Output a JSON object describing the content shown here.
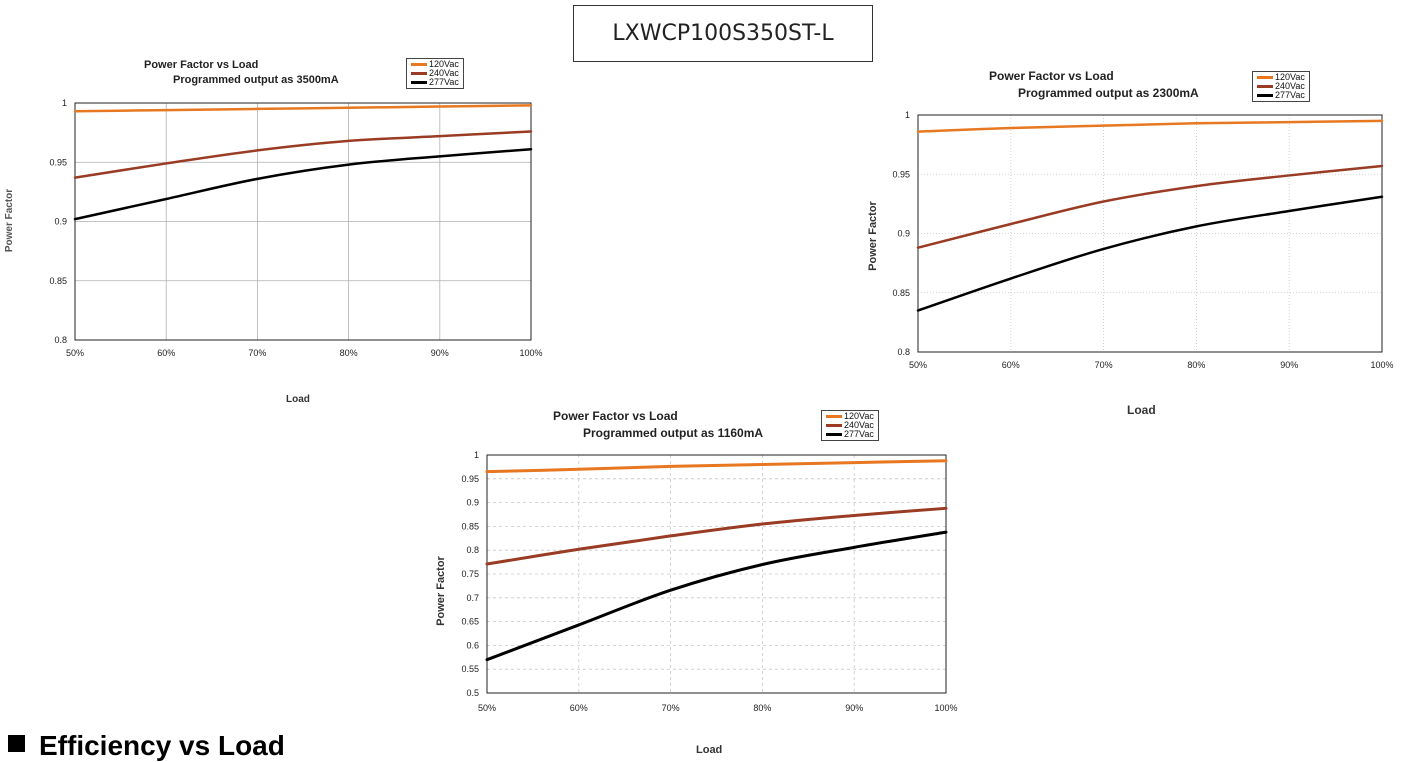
{
  "model": "LXWCP100S350ST-L",
  "section_heading": "Efficiency vs Load",
  "colors": {
    "120Vac": "#e87722",
    "240Vac": "#9a3b24",
    "277Vac": "#000000"
  },
  "charts": [
    {
      "title": "Power Factor vs Load",
      "subtitle": "Programmed output as 3500mA",
      "legend": [
        "120Vac",
        "240Vac",
        "277Vac"
      ],
      "ylabel": "Power Factor",
      "xlabel": "Load"
    },
    {
      "title": "Power Factor vs Load",
      "subtitle": "Programmed output as 2300mA",
      "legend": [
        "120Vac",
        "240Vac",
        "277Vac"
      ],
      "ylabel": "Power Factor",
      "xlabel": "Load"
    },
    {
      "title": "Power Factor vs Load",
      "subtitle": "Programmed output as 1160mA",
      "legend": [
        "120Vac",
        "240Vac",
        "277Vac"
      ],
      "ylabel": "Power Factor",
      "xlabel": "Load"
    }
  ],
  "chart_data": [
    {
      "type": "line",
      "title": "Power Factor vs Load",
      "subtitle": "Programmed output as 3500mA",
      "xlabel": "Load",
      "ylabel": "Power Factor",
      "x": [
        "50%",
        "60%",
        "70%",
        "80%",
        "90%",
        "100%"
      ],
      "x_values": [
        50,
        60,
        70,
        80,
        90,
        100
      ],
      "xlim": [
        50,
        100
      ],
      "ylim": [
        0.8,
        1
      ],
      "yticks": [
        0.8,
        0.85,
        0.9,
        0.95,
        1
      ],
      "ytick_labels": [
        "0.8",
        "0.85",
        "0.9",
        "0.95",
        "1"
      ],
      "grid": "solid",
      "legend_position": "top-right",
      "series": [
        {
          "name": "120Vac",
          "values": [
            0.993,
            0.994,
            0.995,
            0.996,
            0.997,
            0.998
          ]
        },
        {
          "name": "240Vac",
          "values": [
            0.937,
            0.949,
            0.96,
            0.968,
            0.972,
            0.976
          ]
        },
        {
          "name": "277Vac",
          "values": [
            0.902,
            0.919,
            0.936,
            0.948,
            0.955,
            0.961
          ]
        }
      ]
    },
    {
      "type": "line",
      "title": "Power Factor vs Load",
      "subtitle": "Programmed output as 2300mA",
      "xlabel": "Load",
      "ylabel": "Power Factor",
      "x": [
        "50%",
        "60%",
        "70%",
        "80%",
        "90%",
        "100%"
      ],
      "x_values": [
        50,
        60,
        70,
        80,
        90,
        100
      ],
      "xlim": [
        50,
        100
      ],
      "ylim": [
        0.8,
        1
      ],
      "yticks": [
        0.8,
        0.85,
        0.9,
        0.95,
        1
      ],
      "ytick_labels": [
        "0.8",
        "0.85",
        "0.9",
        "0.95",
        "1"
      ],
      "grid": "dotted",
      "legend_position": "top-right",
      "series": [
        {
          "name": "120Vac",
          "values": [
            0.986,
            0.989,
            0.991,
            0.993,
            0.994,
            0.995
          ]
        },
        {
          "name": "240Vac",
          "values": [
            0.888,
            0.908,
            0.927,
            0.94,
            0.949,
            0.957
          ]
        },
        {
          "name": "277Vac",
          "values": [
            0.835,
            0.862,
            0.887,
            0.906,
            0.919,
            0.931
          ]
        }
      ]
    },
    {
      "type": "line",
      "title": "Power Factor vs Load",
      "subtitle": "Programmed output as 1160mA",
      "xlabel": "Load",
      "ylabel": "Power Factor",
      "x": [
        "50%",
        "60%",
        "70%",
        "80%",
        "90%",
        "100%"
      ],
      "x_values": [
        50,
        60,
        70,
        80,
        90,
        100
      ],
      "xlim": [
        50,
        100
      ],
      "ylim": [
        0.5,
        1
      ],
      "yticks": [
        0.5,
        0.55,
        0.6,
        0.65,
        0.7,
        0.75,
        0.8,
        0.85,
        0.9,
        0.95,
        1
      ],
      "ytick_labels": [
        "0.5",
        "0.55",
        "0.6",
        "0.65",
        "0.7",
        "0.75",
        "0.8",
        "0.85",
        "0.9",
        "0.95",
        "1"
      ],
      "grid": "dashed",
      "legend_position": "top-right",
      "series": [
        {
          "name": "120Vac",
          "values": [
            0.965,
            0.97,
            0.976,
            0.98,
            0.984,
            0.988
          ]
        },
        {
          "name": "240Vac",
          "values": [
            0.771,
            0.802,
            0.83,
            0.855,
            0.873,
            0.888
          ]
        },
        {
          "name": "277Vac",
          "values": [
            0.57,
            0.643,
            0.716,
            0.77,
            0.806,
            0.838
          ]
        }
      ]
    }
  ]
}
